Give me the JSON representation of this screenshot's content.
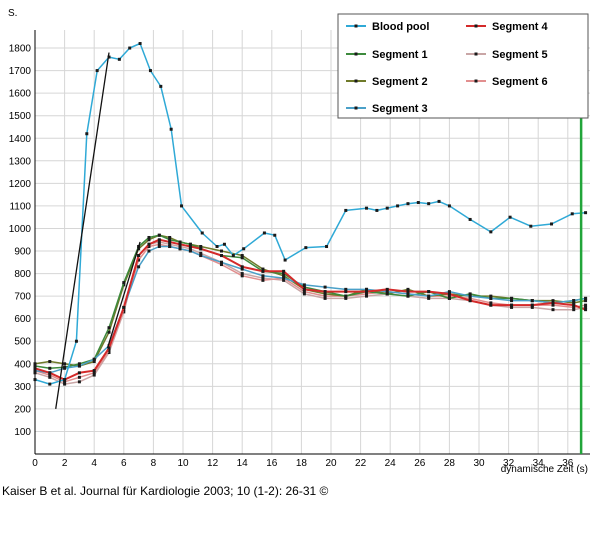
{
  "chart_data": {
    "type": "line",
    "title": "",
    "xlabel": "dynamische Zeit (s)",
    "ylabel": "S.",
    "xlim": [
      0,
      37.5
    ],
    "ylim": [
      0,
      1880
    ],
    "xticks": [
      0,
      2,
      4,
      6,
      8,
      10,
      12,
      14,
      16,
      18,
      20,
      22,
      24,
      26,
      28,
      30,
      32,
      34,
      36
    ],
    "yticks": [
      100,
      200,
      300,
      400,
      500,
      600,
      700,
      800,
      900,
      1000,
      1100,
      1200,
      1300,
      1400,
      1500,
      1600,
      1700,
      1800
    ],
    "grid": true,
    "legend_position": "top-right",
    "vertical_marker": {
      "x": 36.9,
      "y_top": 1680,
      "color": "#22a53a"
    },
    "fit_lines": [
      {
        "name": "Blood pool upslope fit",
        "x": [
          1.4,
          5.0
        ],
        "y": [
          200,
          1780
        ],
        "color": "#111111"
      },
      {
        "name": "Segment upslope fit",
        "x": [
          4.9,
          7.1
        ],
        "y": [
          470,
          940
        ],
        "color": "#111111"
      }
    ],
    "series": [
      {
        "name": "Blood pool",
        "color": "#2fa9d6",
        "marker": "square",
        "x": [
          0,
          1,
          2,
          2.8,
          3.5,
          4.2,
          5,
          5.7,
          6.4,
          7.1,
          7.8,
          8.5,
          9.2,
          9.9,
          11.3,
          12.3,
          12.8,
          13.4,
          14.1,
          15.5,
          16.2,
          16.9,
          18.3,
          19.7,
          21,
          22.4,
          23.1,
          23.8,
          24.5,
          25.2,
          25.9,
          26.6,
          27.3,
          28,
          29.4,
          30.8,
          32.1,
          33.5,
          34.9,
          36.3,
          37.2
        ],
        "y": [
          330,
          310,
          330,
          500,
          1420,
          1700,
          1760,
          1750,
          1800,
          1820,
          1700,
          1630,
          1440,
          1100,
          980,
          920,
          930,
          880,
          910,
          980,
          970,
          860,
          915,
          920,
          1080,
          1090,
          1080,
          1090,
          1100,
          1110,
          1115,
          1110,
          1120,
          1100,
          1040,
          985,
          1050,
          1010,
          1020,
          1065,
          1070
        ]
      },
      {
        "name": "Segment 1",
        "color": "#3d8a3d",
        "marker": "square",
        "x": [
          0,
          1,
          2,
          3,
          4,
          5,
          6,
          7,
          7.7,
          8.4,
          9.1,
          9.8,
          10.5,
          11.2,
          12.6,
          14,
          15.4,
          16.8,
          18.2,
          19.6,
          21,
          22.4,
          23.8,
          25.2,
          26.6,
          28,
          29.4,
          30.8,
          32.2,
          33.6,
          35,
          36.4,
          37.2
        ],
        "y": [
          390,
          380,
          385,
          400,
          420,
          560,
          760,
          920,
          960,
          970,
          950,
          940,
          930,
          910,
          880,
          870,
          810,
          800,
          740,
          720,
          700,
          720,
          710,
          700,
          720,
          690,
          710,
          690,
          690,
          680,
          670,
          680,
          690
        ]
      },
      {
        "name": "Segment 2",
        "color": "#6f7a2a",
        "marker": "square",
        "x": [
          0,
          1,
          2,
          3,
          4,
          5,
          6,
          7,
          7.7,
          8.4,
          9.1,
          9.8,
          10.5,
          11.2,
          12.6,
          14,
          15.4,
          16.8,
          18.2,
          19.6,
          21,
          22.4,
          23.8,
          25.2,
          26.6,
          28,
          29.4,
          30.8,
          32.2,
          33.6,
          35,
          36.4,
          37.2
        ],
        "y": [
          400,
          410,
          400,
          390,
          410,
          540,
          750,
          910,
          950,
          970,
          960,
          940,
          930,
          920,
          900,
          880,
          820,
          790,
          730,
          710,
          700,
          730,
          710,
          730,
          700,
          710,
          700,
          700,
          690,
          680,
          680,
          670,
          680
        ]
      },
      {
        "name": "Segment 3",
        "color": "#4aa0c8",
        "marker": "square",
        "x": [
          0,
          1,
          2,
          3,
          4,
          5,
          6,
          7,
          7.7,
          8.4,
          9.1,
          9.8,
          10.5,
          11.2,
          12.6,
          14,
          15.4,
          16.8,
          18.2,
          19.6,
          21,
          22.4,
          23.8,
          25.2,
          26.6,
          28,
          29.4,
          30.8,
          32.2,
          33.6,
          35,
          36.4,
          37.2
        ],
        "y": [
          370,
          360,
          380,
          390,
          420,
          480,
          650,
          830,
          900,
          920,
          920,
          910,
          900,
          880,
          850,
          820,
          790,
          780,
          750,
          740,
          730,
          730,
          720,
          710,
          700,
          720,
          700,
          690,
          680,
          680,
          670,
          680,
          690
        ]
      },
      {
        "name": "Segment 4",
        "color": "#d42a2a",
        "marker": "square",
        "x": [
          0,
          1,
          2,
          3,
          4,
          5,
          6,
          7,
          7.7,
          8.4,
          9.1,
          9.8,
          10.5,
          11.2,
          12.6,
          14,
          15.4,
          16.8,
          18.2,
          19.6,
          21,
          22.4,
          23.8,
          25.2,
          26.6,
          28,
          29.4,
          30.8,
          32.2,
          33.6,
          35,
          36.4,
          37.2
        ],
        "y": [
          380,
          360,
          330,
          360,
          370,
          470,
          650,
          880,
          930,
          950,
          940,
          930,
          920,
          910,
          880,
          830,
          810,
          810,
          730,
          720,
          720,
          720,
          730,
          720,
          720,
          710,
          680,
          660,
          660,
          660,
          670,
          660,
          640
        ]
      },
      {
        "name": "Segment 5",
        "color": "#c9a6a6",
        "marker": "square",
        "x": [
          0,
          1,
          2,
          3,
          4,
          5,
          6,
          7,
          7.7,
          8.4,
          9.1,
          9.8,
          10.5,
          11.2,
          12.6,
          14,
          15.4,
          16.8,
          18.2,
          19.6,
          21,
          22.4,
          23.8,
          25.2,
          26.6,
          28,
          29.4,
          30.8,
          32.2,
          33.6,
          35,
          36.4,
          37.2
        ],
        "y": [
          360,
          340,
          310,
          320,
          350,
          450,
          630,
          880,
          930,
          940,
          930,
          920,
          910,
          890,
          850,
          800,
          780,
          770,
          710,
          690,
          690,
          700,
          710,
          700,
          690,
          690,
          680,
          660,
          650,
          650,
          640,
          640,
          650
        ]
      },
      {
        "name": "Segment 6",
        "color": "#e28f8f",
        "marker": "square",
        "x": [
          0,
          1,
          2,
          3,
          4,
          5,
          6,
          7,
          7.7,
          8.4,
          9.1,
          9.8,
          10.5,
          11.2,
          12.6,
          14,
          15.4,
          16.8,
          18.2,
          19.6,
          21,
          22.4,
          23.8,
          25.2,
          26.6,
          28,
          29.4,
          30.8,
          32.2,
          33.6,
          35,
          36.4,
          37.2
        ],
        "y": [
          370,
          350,
          320,
          340,
          360,
          460,
          640,
          860,
          920,
          930,
          920,
          910,
          900,
          880,
          840,
          790,
          770,
          780,
          720,
          700,
          700,
          710,
          720,
          710,
          700,
          700,
          690,
          670,
          660,
          660,
          660,
          650,
          660
        ]
      }
    ]
  },
  "legend_items": [
    {
      "label": "Blood pool",
      "color": "#2fa9d6"
    },
    {
      "label": "Segment 1",
      "color": "#3d8a3d"
    },
    {
      "label": "Segment 2",
      "color": "#6f7a2a"
    },
    {
      "label": "Segment 3",
      "color": "#4aa0c8"
    },
    {
      "label": "Segment 4",
      "color": "#d42a2a"
    },
    {
      "label": "Segment 5",
      "color": "#c9a6a6"
    },
    {
      "label": "Segment 6",
      "color": "#e28f8f"
    }
  ],
  "caption": "Kaiser B et al. Journal für Kardiologie 2003; 10 (1-2): 26-31 ©"
}
